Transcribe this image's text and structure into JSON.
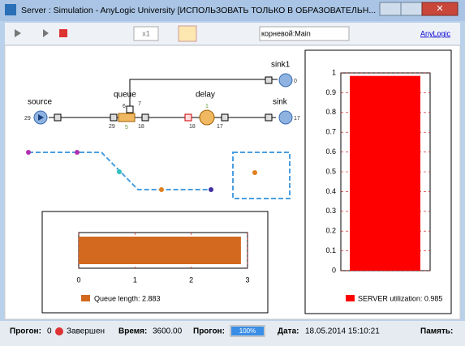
{
  "window": {
    "title": "Server : Simulation - AnyLogic University  [ИСПОЛЬЗОВАТЬ ТОЛЬКО В ОБРАЗОВАТЕЛЬН..."
  },
  "toolbar": {
    "speed": "x1",
    "root": "корневой:Main",
    "brand": "AnyLogic"
  },
  "model": {
    "source": {
      "label": "source",
      "out": "29"
    },
    "queue": {
      "label": "queue",
      "in": "29",
      "size": "5",
      "out": "18",
      "top_left": "6",
      "top_right": "7"
    },
    "delay": {
      "label": "delay",
      "in": "18",
      "size": "1",
      "out": "17"
    },
    "sink": {
      "label": "sink",
      "count": "17"
    },
    "sink1": {
      "label": "sink1",
      "count": "0"
    }
  },
  "queue_chart": {
    "type": "bar",
    "orientation": "horizontal",
    "value": 2.883,
    "color": "#d2691e",
    "xlim": [
      0,
      3
    ],
    "xticks": [
      0,
      1,
      2,
      3
    ],
    "legend": "Queue length: 2.883"
  },
  "server_chart": {
    "type": "bar",
    "value": 0.985,
    "color": "#ff0000",
    "ylim": [
      0,
      1
    ],
    "yticks": [
      0,
      0.1,
      0.2,
      0.3,
      0.4,
      0.5,
      0.6,
      0.7,
      0.8,
      0.9,
      1
    ],
    "legend": "SERVER utilization: 0.985"
  },
  "status": {
    "run_label": "Прогон:",
    "run": "0",
    "state": "Завершен",
    "time_label": "Время:",
    "time": "3600.00",
    "progress_label": "Прогон:",
    "progress": {
      "value": 100,
      "label": "100%"
    },
    "date_label": "Дата:",
    "date": "18.05.2014 15:10:21",
    "memory_label": "Память:"
  }
}
